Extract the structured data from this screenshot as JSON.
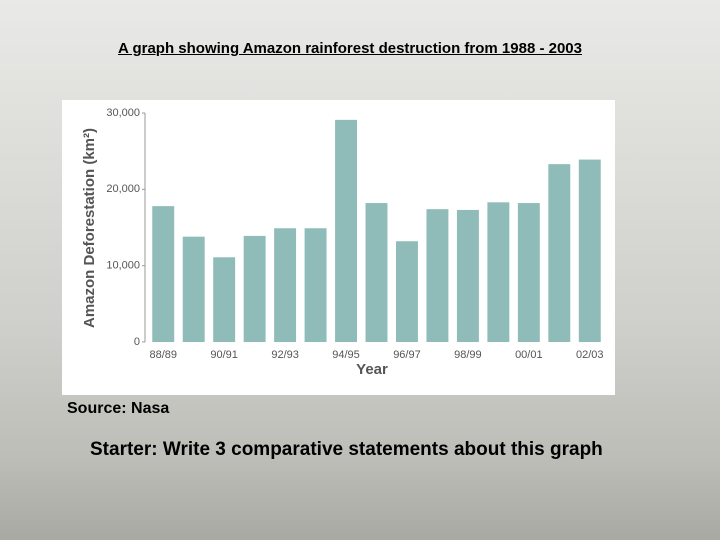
{
  "title": "A graph showing Amazon rainforest destruction from 1988 - 2003",
  "chart_data": {
    "type": "bar",
    "ylabel": "Amazon Deforestation (km²)",
    "xlabel": "Year",
    "categories": [
      "88/89",
      null,
      "90/91",
      null,
      "92/93",
      null,
      "94/95",
      null,
      "96/97",
      null,
      "98/99",
      null,
      "00/01",
      null,
      "02/03"
    ],
    "values": [
      17800,
      13800,
      11100,
      13900,
      14900,
      14900,
      29100,
      18200,
      13200,
      17400,
      17300,
      18300,
      18200,
      23300,
      23900
    ],
    "color": "#8fbcb8",
    "ylim": [
      0,
      30000
    ],
    "yticks": [
      0,
      {
        "value": 10000,
        "label": "10,000"
      },
      {
        "value": 20000,
        "label": "20,000"
      },
      {
        "value": 30000,
        "label": "30,000"
      }
    ]
  },
  "source": "Source: Nasa",
  "prompt": "Starter: Write 3 comparative statements about this graph"
}
